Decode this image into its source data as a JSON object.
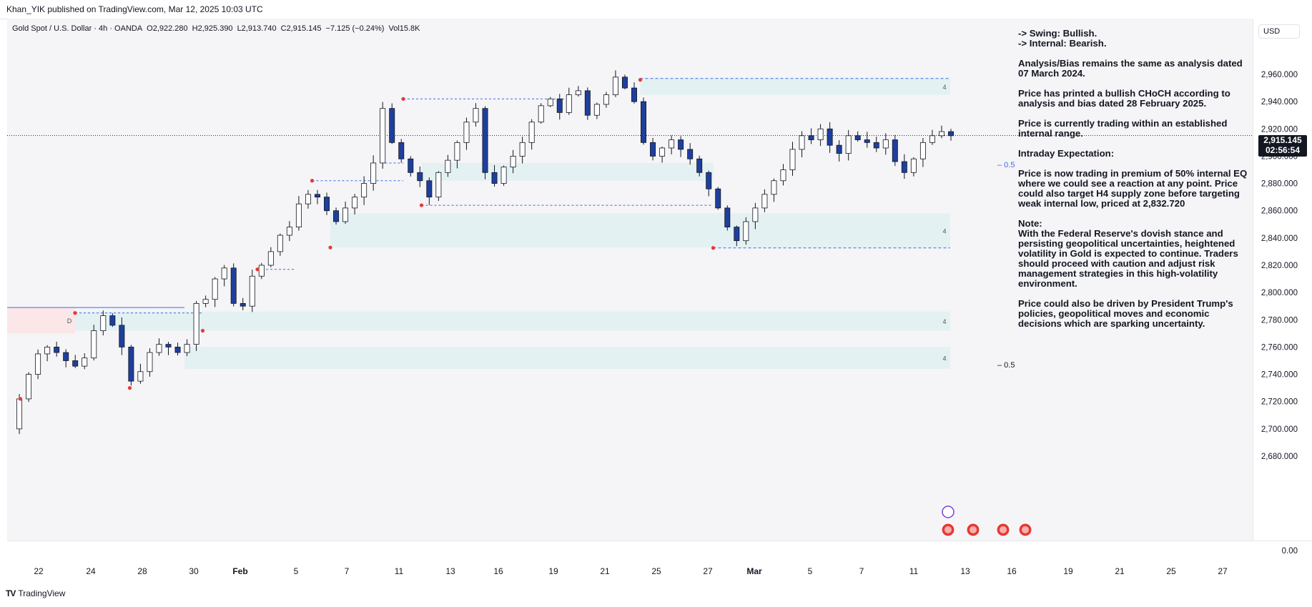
{
  "header": {
    "published_by": "Khan_YIK published on TradingView.com, Mar 12, 2025 10:03 UTC"
  },
  "symbol_line": {
    "symbol": "Gold Spot / U.S. Dollar · 4h · OANDA",
    "open": "O2,922.280",
    "high": "H2,925.390",
    "low": "L2,913.740",
    "close": "C2,915.145",
    "change": "−7.125 (−0.24%)",
    "volume": "Vol15.8K"
  },
  "currency_button": "USD",
  "last_price": {
    "price": "2,915.145",
    "countdown": "02:56:54"
  },
  "annotation": [
    "-> Swing:  Bullish.\n-> Internal:  Bearish.",
    "Analysis/Bias remains the same as analysis dated 07 March 2024.",
    "Price has printed a bullish CHoCH according to analysis and bias dated 28 February 2025.",
    "Price is currently trading within an established internal range.",
    "Intraday Expectation:",
    "Price is now trading in premium of 50% internal EQ where we could see a reaction at any point. Price could also target H4 supply zone before targeting weak internal low, priced at 2,832.720",
    "Note:\nWith the Federal Reserve's dovish stance and persisting geopolitical uncertainties, heightened volatility in Gold is expected to continue. Traders should proceed with caution and adjust risk management strategies in this high-volatility environment.",
    "Price could also be driven by President Trump's policies, geopolitical moves and economic decisions which are sparking uncertainty."
  ],
  "footer": {
    "logo": "TV",
    "brand": "TradingView"
  },
  "chart_data": {
    "type": "candlestick",
    "x_dates": [
      "2025-01-21",
      "2025-03-12"
    ],
    "ylim": [
      2670,
      2970
    ],
    "price_ticks": [
      "2,960.000",
      "2,940.000",
      "2,920.000",
      "2,900.000",
      "2,880.000",
      "2,860.000",
      "2,840.000",
      "2,820.000",
      "2,800.000",
      "2,780.000",
      "2,760.000",
      "2,740.000",
      "2,720.000",
      "2,700.000",
      "2,680.000",
      "0.00"
    ],
    "time_ticks": [
      "22",
      "24",
      "28",
      "30",
      "Feb",
      "5",
      "7",
      "11",
      "13",
      "16",
      "19",
      "21",
      "25",
      "27",
      "Mar",
      "5",
      "7",
      "11",
      "13",
      "16",
      "19",
      "21",
      "25",
      "27"
    ],
    "close_path": [
      2700,
      2722,
      2740,
      2755,
      2760,
      2756,
      2750,
      2746,
      2752,
      2772,
      2783,
      2776,
      2760,
      2735,
      2742,
      2756,
      2762,
      2760,
      2756,
      2762,
      2792,
      2795,
      2810,
      2818,
      2792,
      2790,
      2812,
      2820,
      2830,
      2842,
      2848,
      2865,
      2872,
      2870,
      2860,
      2852,
      2862,
      2870,
      2880,
      2895,
      2935,
      2910,
      2898,
      2888,
      2882,
      2870,
      2888,
      2897,
      2910,
      2925,
      2935,
      2888,
      2880,
      2892,
      2900,
      2910,
      2925,
      2937,
      2942,
      2932,
      2945,
      2948,
      2930,
      2938,
      2945,
      2958,
      2950,
      2940,
      2910,
      2900,
      2906,
      2912,
      2905,
      2898,
      2888,
      2876,
      2862,
      2848,
      2838,
      2852,
      2862,
      2872,
      2882,
      2890,
      2905,
      2915,
      2912,
      2920,
      2908,
      2902,
      2915,
      2912,
      2910,
      2906,
      2912,
      2896,
      2888,
      2898,
      2910,
      2915,
      2918,
      2915
    ],
    "candles_note": "",
    "pivot_highs": [
      [
        "2025-01-24",
        2785
      ],
      [
        "2025-02-03",
        2817
      ],
      [
        "2025-02-06",
        2882
      ],
      [
        "2025-02-11",
        2942
      ],
      [
        "2025-02-24",
        2956
      ]
    ],
    "pivot_lows": [
      [
        "2025-01-21",
        2722
      ],
      [
        "2025-01-27",
        2730
      ],
      [
        "2025-01-31",
        2772
      ],
      [
        "2025-02-07",
        2833
      ],
      [
        "2025-02-12",
        2864
      ],
      [
        "2025-02-28",
        2832.72
      ]
    ],
    "zones": [
      {
        "kind": "demand",
        "top": 2895,
        "bottom": 2882,
        "label": ""
      },
      {
        "kind": "demand",
        "top": 2858,
        "bottom": 2833,
        "label": "4"
      },
      {
        "kind": "supply",
        "top": 2957,
        "bottom": 2945,
        "label": "4"
      },
      {
        "kind": "demand",
        "top": 2786,
        "bottom": 2772,
        "label": "4"
      },
      {
        "kind": "demand",
        "top": 2760,
        "bottom": 2744,
        "label": "4"
      },
      {
        "kind": "daily-supply",
        "top": 2789,
        "bottom": 2770,
        "label": "D"
      }
    ],
    "levels": [
      {
        "price": 2832.72,
        "label": ""
      },
      {
        "price": 2957,
        "label": ""
      },
      {
        "price": 2915.145,
        "label": ""
      }
    ],
    "eq_labels": [
      {
        "price": 2894,
        "label": "0.5"
      },
      {
        "price": 2747,
        "label": "0.5"
      }
    ],
    "zone_tag_label": "4",
    "daily_tag_label": "D"
  }
}
